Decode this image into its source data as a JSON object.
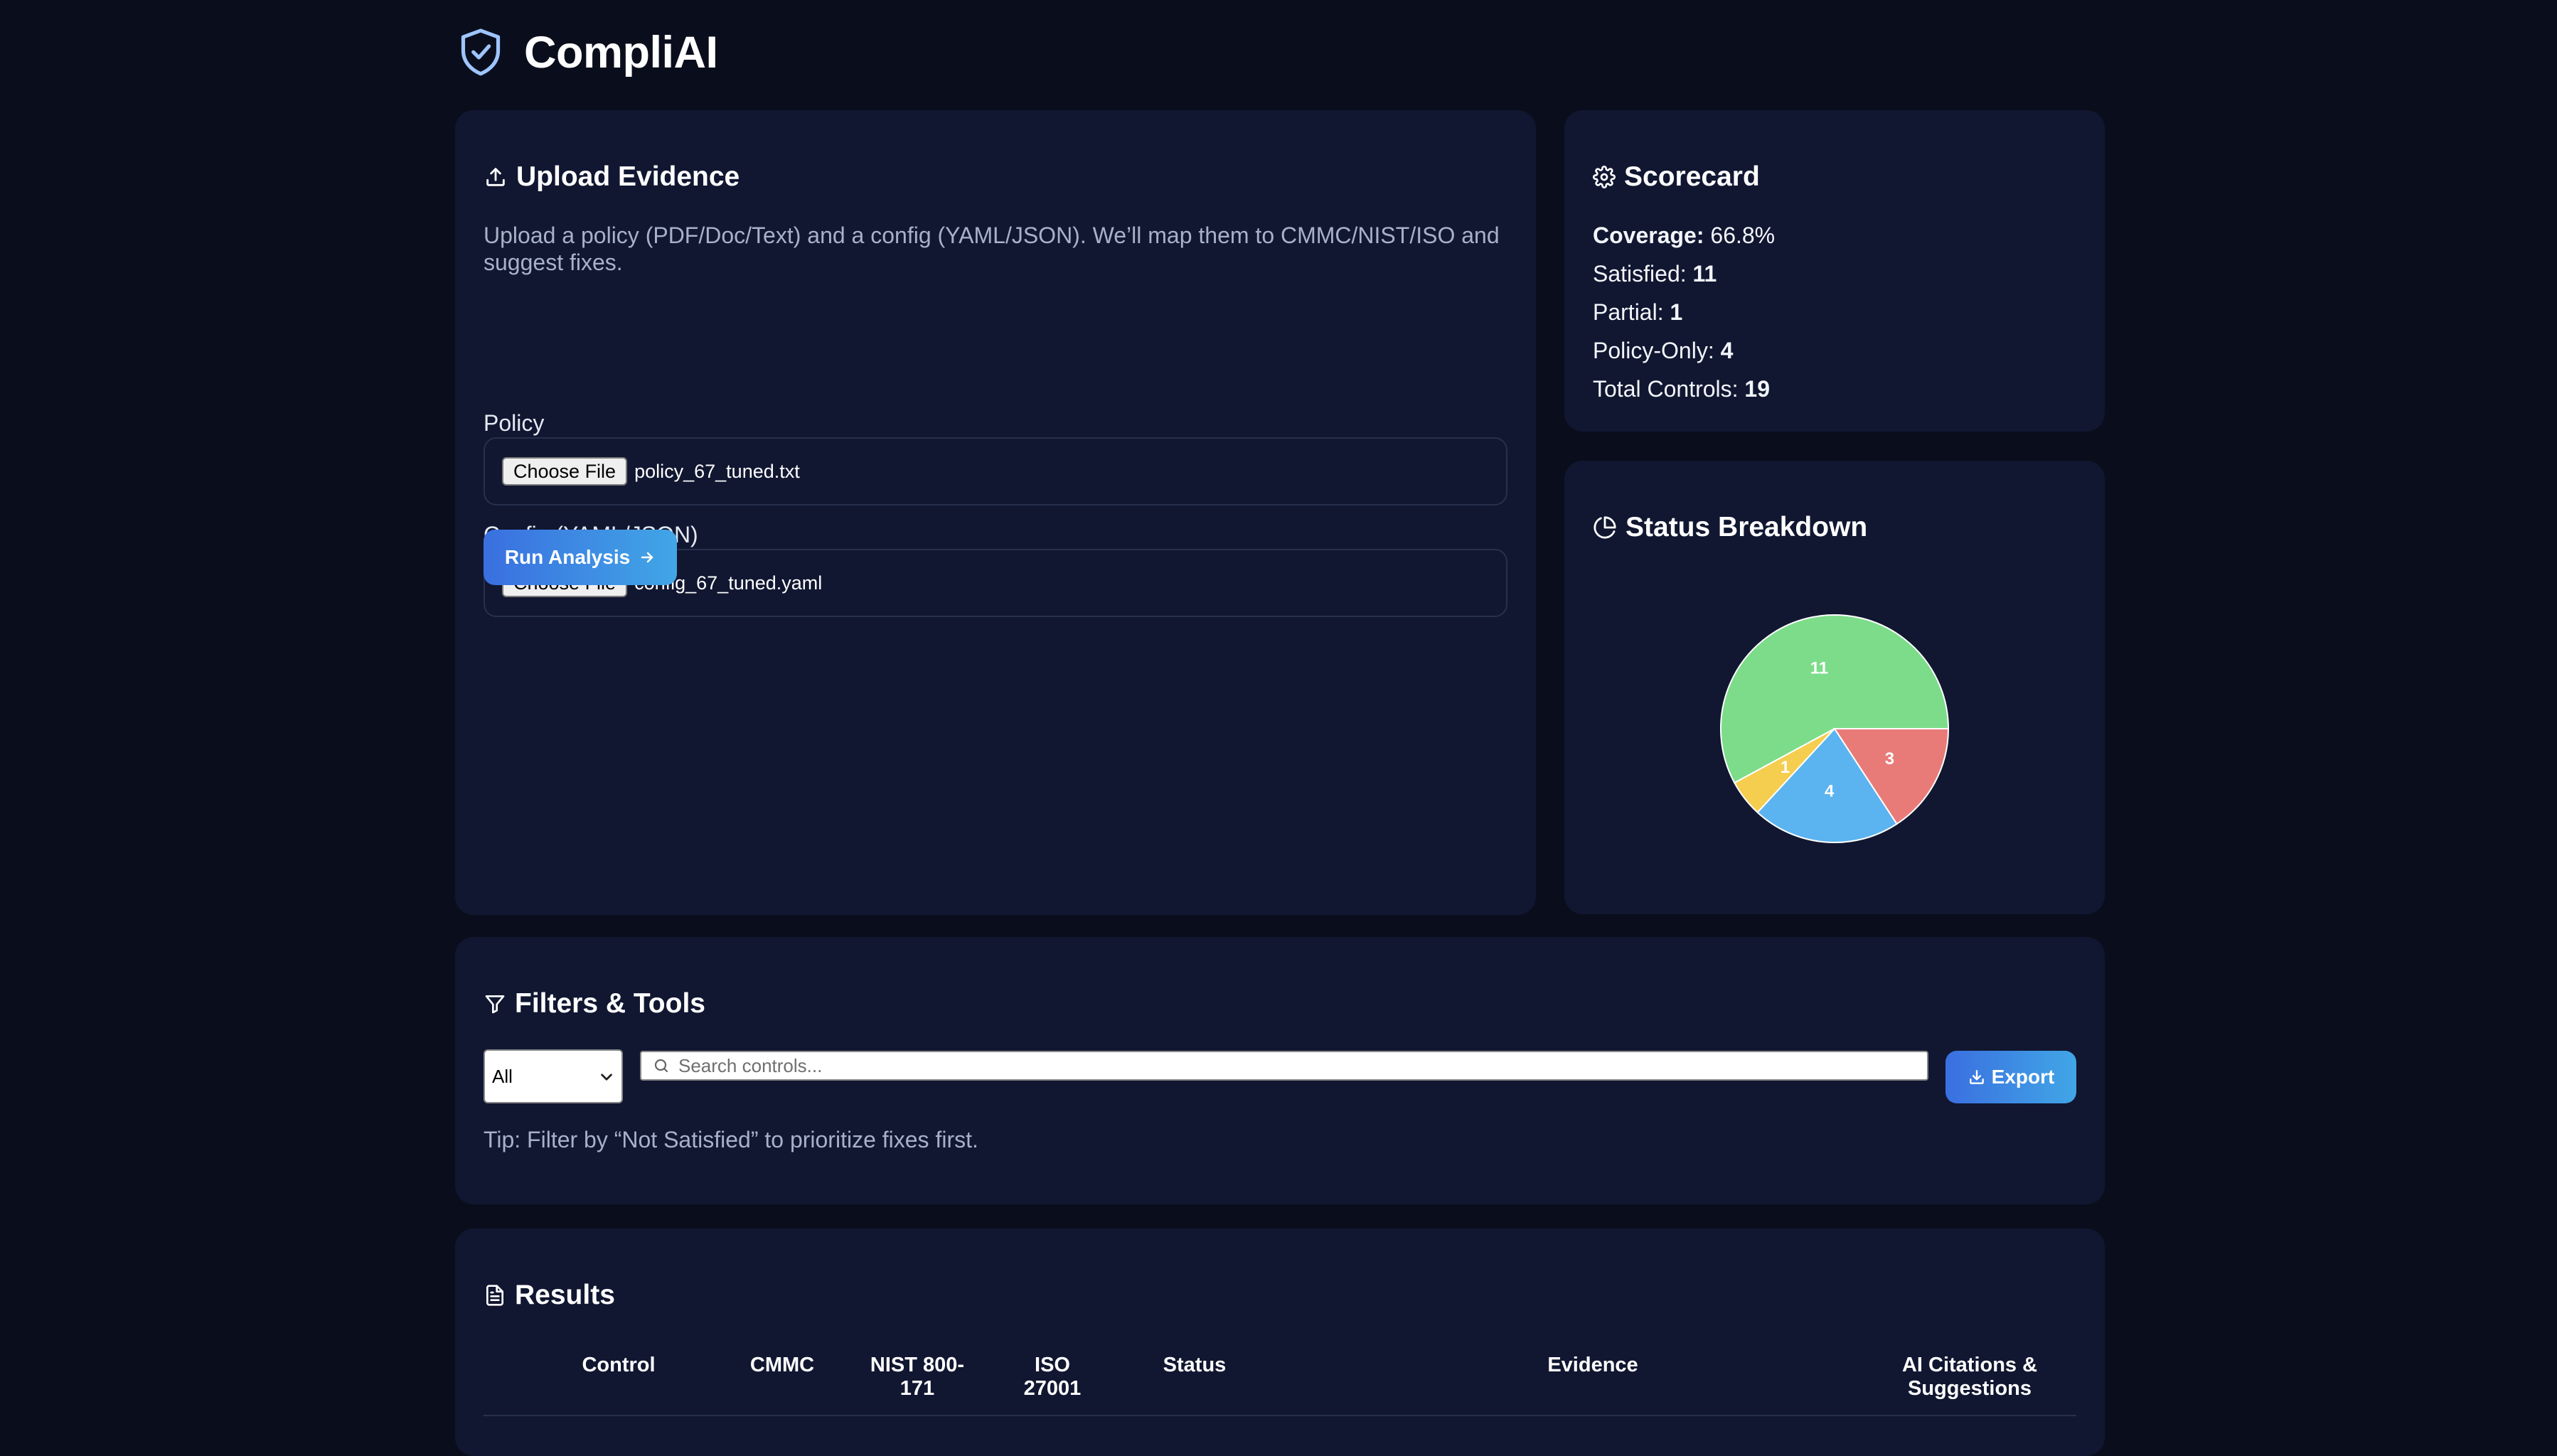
{
  "app": {
    "title": "CompliAI"
  },
  "upload": {
    "title": "Upload Evidence",
    "description": "Upload a policy (PDF/Doc/Text) and a config (YAML/JSON). We’ll map them to CMMC/NIST/ISO and suggest fixes.",
    "policy": {
      "label": "Policy",
      "button": "Choose File",
      "file": "policy_67_tuned.txt"
    },
    "config": {
      "label": "Config (YAML/JSON)",
      "button": "Choose File",
      "file": "config_67_tuned.yaml"
    },
    "run_label": "Run Analysis"
  },
  "scorecard": {
    "title": "Scorecard",
    "coverage_label": "Coverage:",
    "coverage_value": "66.8%",
    "satisfied_label": "Satisfied:",
    "satisfied_value": "11",
    "partial_label": "Partial:",
    "partial_value": "1",
    "policy_only_label": "Policy-Only:",
    "policy_only_value": "4",
    "total_label": "Total Controls:",
    "total_value": "19"
  },
  "breakdown": {
    "title": "Status Breakdown"
  },
  "chart_data": {
    "type": "pie",
    "slices": [
      {
        "value": 11,
        "label": "11",
        "color": "#7cdc8a"
      },
      {
        "value": 3,
        "label": "3",
        "color": "#e87b78"
      },
      {
        "value": 4,
        "label": "4",
        "color": "#5bb3f0"
      },
      {
        "value": 1,
        "label": "1",
        "color": "#f5cd4f"
      }
    ]
  },
  "filters": {
    "title": "Filters & Tools",
    "select_value": "All",
    "search_placeholder": "Search controls...",
    "export_label": "Export",
    "tip": "Tip: Filter by “Not Satisfied” to prioritize fixes first."
  },
  "results": {
    "title": "Results",
    "columns": [
      "Control",
      "CMMC",
      "NIST 800-\n171",
      "ISO\n27001",
      "Status",
      "Evidence",
      "AI Citations &\nSuggestions"
    ]
  },
  "colors": {
    "background": "#0a0e1c",
    "card": "#111731",
    "accent": "#3a6fe0",
    "muted_text": "#a7b1c8"
  }
}
